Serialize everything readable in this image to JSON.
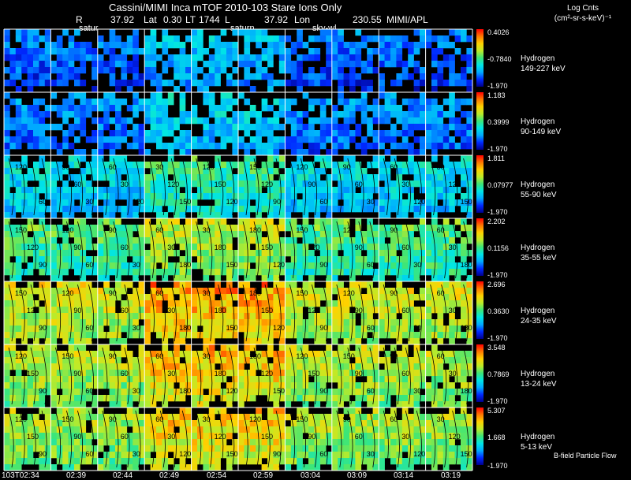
{
  "header": {
    "title": "Cassini/MIMI Inca mTOF   2010-103   Stare    Ions Only",
    "r_label": "R",
    "r_value": "37.92",
    "lat_label": "Lat",
    "lat_value": "0.30",
    "lt_label": "LT",
    "lt_value": "1744",
    "l_label": "L",
    "l_value": "37.92",
    "lon_label": "Lon",
    "lon_value": "230.55",
    "org": "MIMI/APL"
  },
  "units": {
    "line1": "Log Cnts",
    "line2": "(cm²-sr-s-keV)⁻¹"
  },
  "overlays": [
    "satur",
    "saturn",
    "sky-wl"
  ],
  "footer_note": "B-field Particle Flow",
  "colors": {
    "background": "#000000",
    "grid": "#ffffff",
    "contour": "#000000"
  },
  "chart_data": {
    "type": "heatmap",
    "colormap": "rainbow",
    "time_ticks": [
      "103T02:34",
      "02:39",
      "02:44",
      "02:49",
      "02:54",
      "02:59",
      "03:04",
      "03:09",
      "03:14",
      "03:19"
    ],
    "channels": [
      {
        "species": "Hydrogen",
        "energy": "149-227 keV",
        "cmax": "0.4026",
        "cmid": "-0.7840",
        "cmin": "-1.970",
        "level": 0.18,
        "contours": []
      },
      {
        "species": "Hydrogen",
        "energy": "90-149 keV",
        "cmax": "1.183",
        "cmid": "0.3999",
        "cmin": "-1.970",
        "level": 0.22,
        "contours": []
      },
      {
        "species": "Hydrogen",
        "energy": "55-90 keV",
        "cmax": "1.811",
        "cmid": "0.07977",
        "cmin": "-1.970",
        "level": 0.36,
        "contours": [
          "120",
          "90",
          "60",
          "30",
          "120",
          "150"
        ]
      },
      {
        "species": "Hydrogen",
        "energy": "35-55 keV",
        "cmax": "2.202",
        "cmid": "0.1156",
        "cmin": "-1.970",
        "level": 0.52,
        "contours": [
          "150",
          "120",
          "90",
          "60",
          "30",
          "180"
        ]
      },
      {
        "species": "Hydrogen",
        "energy": "24-35 keV",
        "cmax": "2.696",
        "cmid": "0.3630",
        "cmin": "-1.970",
        "level": 0.68,
        "contours": [
          "150",
          "120",
          "90",
          "60",
          "30",
          "180"
        ]
      },
      {
        "species": "Hydrogen",
        "energy": "13-24 keV",
        "cmax": "3.548",
        "cmid": "0.7869",
        "cmin": "-1.970",
        "level": 0.64,
        "contours": [
          "120",
          "150",
          "90",
          "60",
          "30",
          "180"
        ]
      },
      {
        "species": "Hydrogen",
        "energy": "5-13 keV",
        "cmax": "5.307",
        "cmid": "1.668",
        "cmin": "-1.970",
        "level": 0.62,
        "contours": [
          "120",
          "150",
          "90",
          "60",
          "30"
        ]
      }
    ]
  }
}
